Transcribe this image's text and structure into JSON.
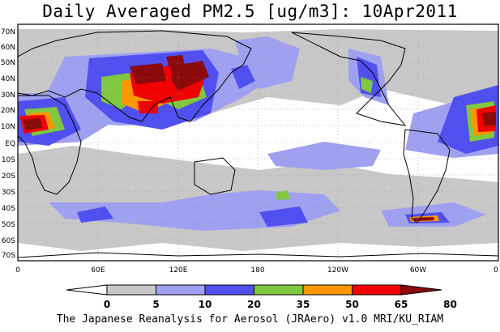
{
  "title": "Daily Averaged PM2.5 [ug/m3]: 10Apr2011",
  "credit": "The Japanese Reanalysis for Aerosol (JRAero) v1.0 MRI/KU_RIAM",
  "map": {
    "projection": "equirectangular",
    "lon_range": [
      0,
      360
    ],
    "lat_range": [
      -75,
      75
    ],
    "gridlines": "dotted",
    "lat_ticks": [
      "70N",
      "60N",
      "50N",
      "40N",
      "30N",
      "20N",
      "10N",
      "EQ",
      "10S",
      "20S",
      "30S",
      "40S",
      "50S",
      "60S",
      "70S"
    ],
    "lon_ticks": [
      "0",
      "60E",
      "120E",
      "180",
      "120W",
      "60W",
      "0"
    ]
  },
  "colorbar": {
    "levels": [
      "0",
      "5",
      "10",
      "20",
      "35",
      "50",
      "65",
      "80"
    ],
    "colors": [
      "#ffffff",
      "#c8c8c8",
      "#a0a0f0",
      "#5050f0",
      "#80c840",
      "#ff9600",
      "#f00000",
      "#8c0a0a"
    ]
  }
}
